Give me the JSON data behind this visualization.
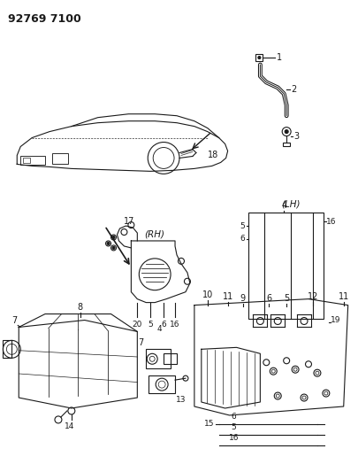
{
  "title": "92769 7100",
  "bg": "#ffffff",
  "lc": "#1a1a1a",
  "fig_w": 4.06,
  "fig_h": 5.33,
  "dpi": 100
}
